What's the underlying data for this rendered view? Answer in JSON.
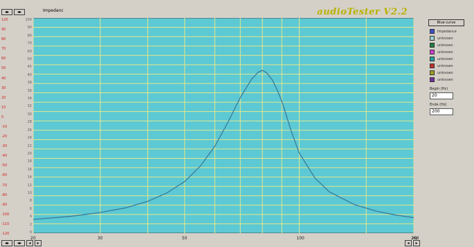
{
  "window": {
    "title": "Impedanc",
    "app_title": "audioTester V2.2",
    "top_buttons": [
      "◂▸",
      "◂▸"
    ],
    "bottom_buttons": [
      "◂▸",
      "◂▸",
      "◂",
      "▸"
    ],
    "corner_buttons": [
      "◂",
      "▸"
    ]
  },
  "left_scale_labels": [
    "120",
    "90",
    "80",
    "70",
    "60",
    "50",
    "40",
    "30",
    "20",
    "10",
    "0",
    "-10",
    "-20",
    "-30",
    "-40",
    "-50",
    "-60",
    "-70",
    "-80",
    "-90",
    "-100",
    "-110",
    "-120"
  ],
  "right_scale_labels": [
    "100",
    "90",
    "80",
    "70",
    "60",
    "50",
    "45",
    "40",
    "38",
    "36",
    "34",
    "32",
    "30",
    "28",
    "26",
    "24",
    "22",
    "20",
    "18",
    "16",
    "14",
    "12",
    "10",
    "8",
    "6",
    "4",
    "2",
    "0"
  ],
  "panel": {
    "button_label": "Blue curve",
    "channels": [
      {
        "label": "Impedance",
        "color": "#3a4fd0"
      },
      {
        "label": "unknown",
        "color": "#a0d0d0"
      },
      {
        "label": "unknown",
        "color": "#208040"
      },
      {
        "label": "unknown",
        "color": "#d040d0"
      },
      {
        "label": "unknown",
        "color": "#20a0a0"
      },
      {
        "label": "unknown",
        "color": "#c03030"
      },
      {
        "label": "unknown",
        "color": "#a0a020"
      },
      {
        "label": "unknown",
        "color": "#7030a0"
      }
    ],
    "fields": [
      {
        "label": "Begin (Hz)",
        "value": "20"
      },
      {
        "label": "Ende (Hz)",
        "value": "200"
      }
    ]
  },
  "chart_data": {
    "type": "line",
    "xscale": "log",
    "xlim": [
      20,
      200
    ],
    "ylim": [
      0,
      50
    ],
    "x_tick_labels": [
      {
        "value": 20,
        "label": "20"
      },
      {
        "value": 30,
        "label": "30"
      },
      {
        "value": 50,
        "label": "50"
      },
      {
        "value": 100,
        "label": "100"
      },
      {
        "value": 200,
        "label": "200"
      }
    ],
    "corner_label": "Hz",
    "grid": true,
    "colors": {
      "background": "#5cc9d4",
      "grid": "#e8e88a",
      "curve": "#3a7a9c"
    },
    "series": [
      {
        "x": [
          20,
          25,
          30,
          35,
          40,
          45,
          50,
          55,
          60,
          65,
          70,
          75,
          78,
          80,
          82,
          85,
          88,
          90,
          93,
          95,
          100,
          110,
          120,
          140,
          160,
          180,
          200
        ],
        "y": [
          3.2,
          3.9,
          4.8,
          5.9,
          7.4,
          9.4,
          12.0,
          15.6,
          20.2,
          25.8,
          31.5,
          35.8,
          37.4,
          37.8,
          37.3,
          35.6,
          32.8,
          30.6,
          26.7,
          24.0,
          18.6,
          12.8,
          9.6,
          6.6,
          5.1,
          4.2,
          3.6
        ]
      }
    ]
  }
}
